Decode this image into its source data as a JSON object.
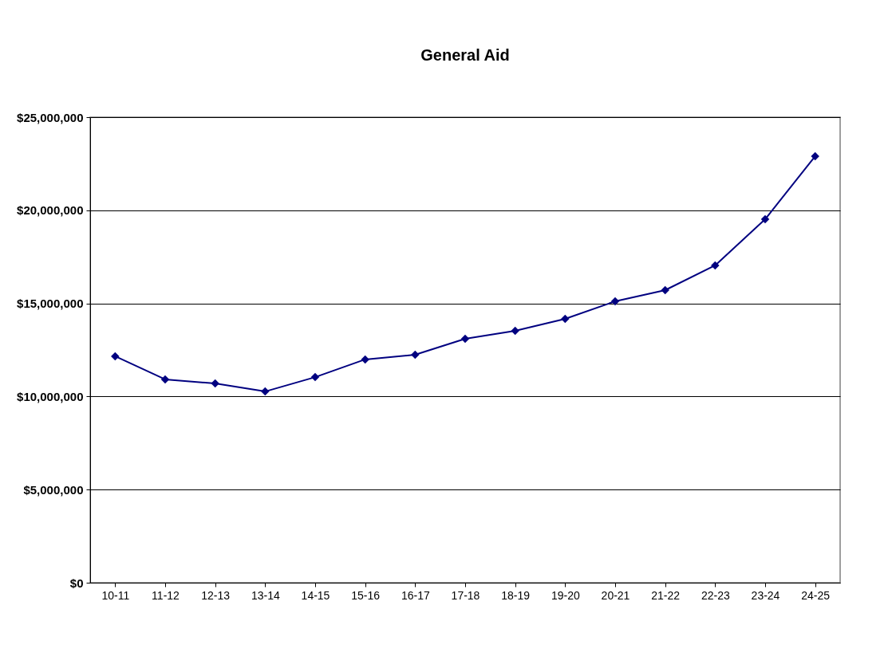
{
  "chart_data": {
    "type": "line",
    "title": "General Aid",
    "categories": [
      "10-11",
      "11-12",
      "12-13",
      "13-14",
      "14-15",
      "15-16",
      "16-17",
      "17-18",
      "18-19",
      "19-20",
      "20-21",
      "21-22",
      "22-23",
      "23-24",
      "24-25"
    ],
    "series": [
      {
        "color": "#000080",
        "values": [
          12160000,
          10920000,
          10700000,
          10270000,
          11040000,
          11990000,
          12240000,
          13100000,
          13530000,
          14170000,
          15110000,
          15710000,
          17040000,
          19520000,
          22900000
        ]
      }
    ],
    "ylim": [
      0,
      25000000
    ],
    "yticks": [
      {
        "value": 0,
        "label": "$0"
      },
      {
        "value": 5000000,
        "label": "$5,000,000"
      },
      {
        "value": 10000000,
        "label": "$10,000,000"
      },
      {
        "value": 15000000,
        "label": "$15,000,000"
      },
      {
        "value": 20000000,
        "label": "$20,000,000"
      },
      {
        "value": 25000000,
        "label": "$25,000,000"
      }
    ],
    "grid": "y",
    "marker": "diamond",
    "line_style": "solid"
  }
}
